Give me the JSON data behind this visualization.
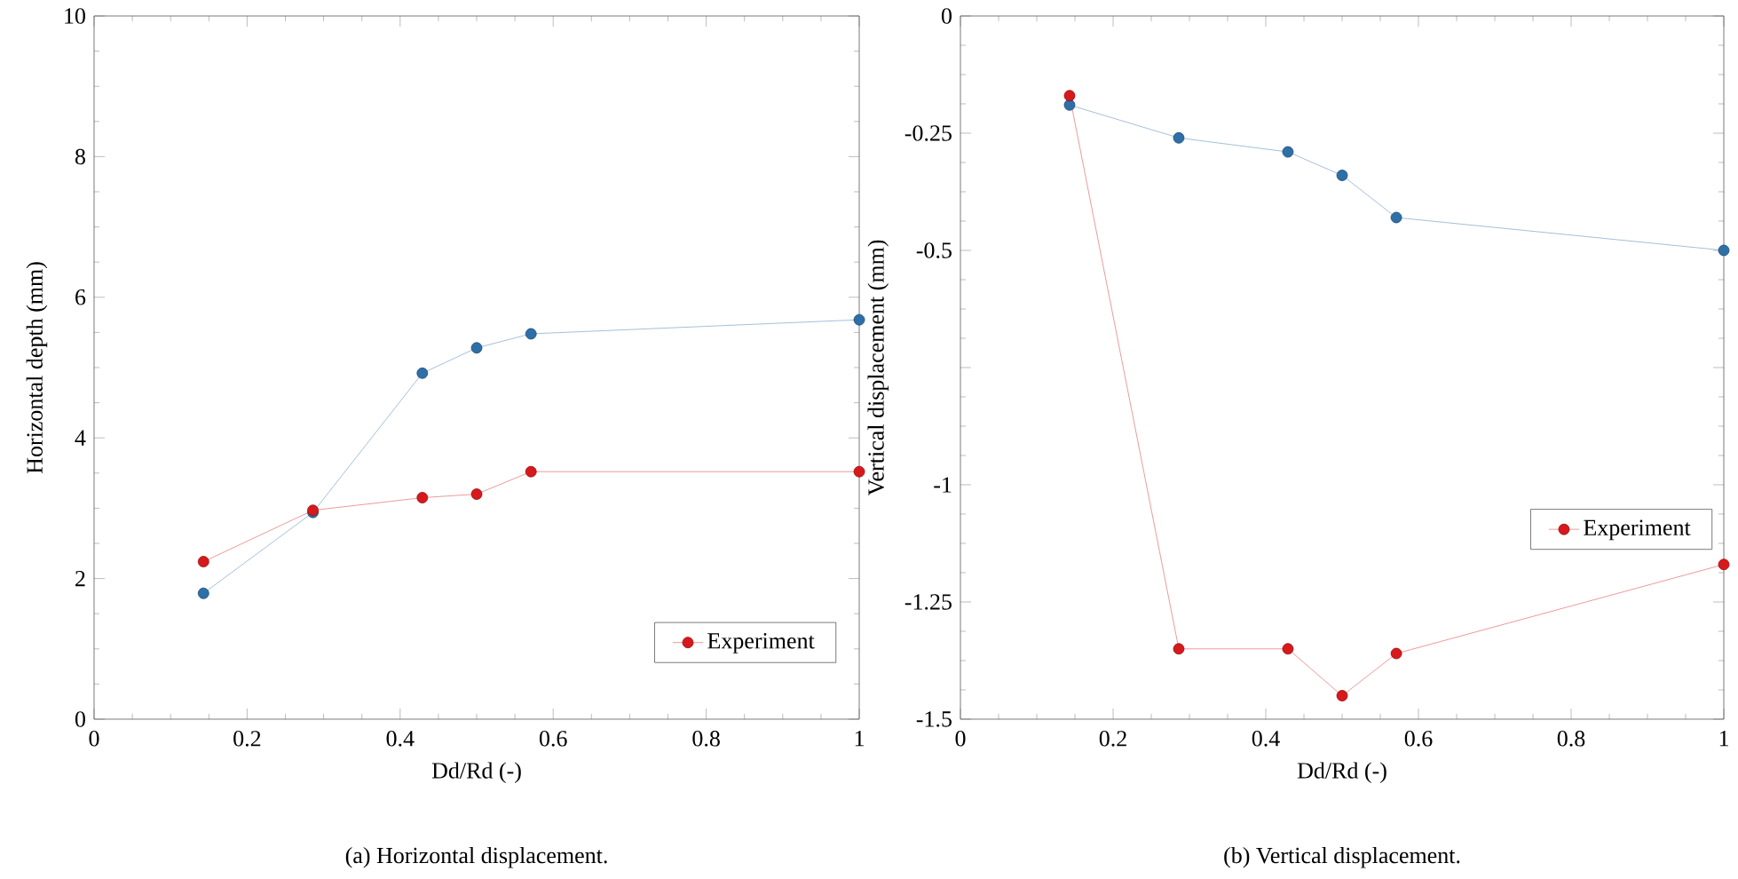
{
  "chart_data": [
    {
      "type": "line",
      "title": "(a) Horizontal displacement.",
      "xlabel": "Dd/Rd (-)",
      "ylabel": "Horizontal depth (mm)",
      "x": [
        0.143,
        0.286,
        0.429,
        0.5,
        0.571,
        1
      ],
      "series": [
        {
          "name": "Experiment",
          "color": "#d7191c",
          "values": [
            2.24,
            2.97,
            3.15,
            3.2,
            3.52,
            3.52
          ]
        },
        {
          "color": "#2f6fa8",
          "values": [
            1.79,
            2.94,
            4.92,
            5.28,
            5.48,
            5.68
          ]
        }
      ],
      "xlim": [
        0,
        1
      ],
      "xticks": [
        0,
        0.2,
        0.4,
        0.6,
        0.8,
        1
      ],
      "ylim": [
        0,
        10
      ],
      "yticks": [
        0,
        2,
        4,
        6,
        8,
        10
      ],
      "legend": "bottom right",
      "marker": "circle",
      "line_style": "solid",
      "grid": false
    },
    {
      "type": "line",
      "title": "(b) Vertical displacement.",
      "xlabel": "Dd/Rd (-)",
      "ylabel": "Vertical displacement (mm)",
      "x": [
        0.143,
        0.286,
        0.429,
        0.5,
        0.571,
        1
      ],
      "series": [
        {
          "name": "Experiment",
          "color": "#d7191c",
          "values": [
            -0.17,
            -1.35,
            -1.35,
            -1.45,
            -1.36,
            -1.17
          ]
        },
        {
          "color": "#2f6fa8",
          "values": [
            -0.19,
            -0.26,
            -0.29,
            -0.34,
            -0.43,
            -0.5
          ]
        }
      ],
      "xlim": [
        0,
        1
      ],
      "xticks": [
        0,
        0.2,
        0.4,
        0.6,
        0.8,
        1
      ],
      "ylim": [
        -1.5,
        0
      ],
      "yticks": [
        -1.5,
        -1.25,
        -1,
        {
          "value": -0.75,
          "label": null
        },
        -0.5,
        -0.25,
        0
      ],
      "legend": "right",
      "marker": "circle",
      "line_style": "solid",
      "grid": false
    }
  ]
}
